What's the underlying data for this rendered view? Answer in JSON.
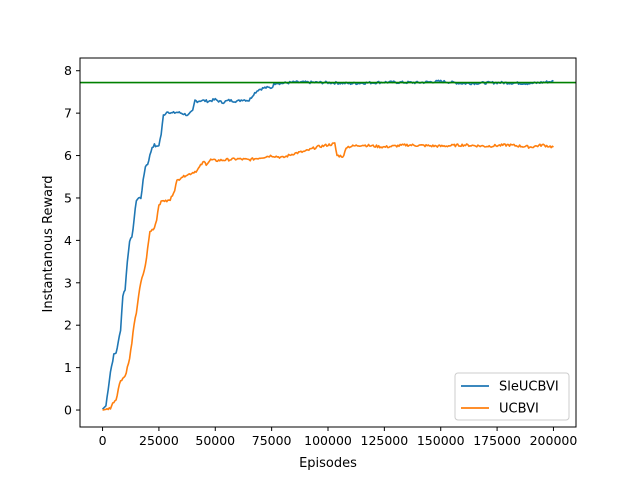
{
  "chart_data": {
    "type": "line",
    "title": "",
    "xlabel": "Episodes",
    "ylabel": "Instantanous Reward",
    "xlim": [
      -10000,
      210000
    ],
    "ylim": [
      -0.4,
      8.3
    ],
    "xticks": [
      0,
      25000,
      50000,
      75000,
      100000,
      125000,
      150000,
      175000,
      200000
    ],
    "yticks": [
      0,
      1,
      2,
      3,
      4,
      5,
      6,
      7,
      8
    ],
    "grid": false,
    "legend_position": "lower right",
    "reference_line": {
      "y": 7.72,
      "color": "#008000"
    },
    "series": [
      {
        "name": "SleUCBVI",
        "color": "#1f77b4",
        "x": [
          0,
          1500,
          2500,
          3500,
          5000,
          6000,
          7000,
          8000,
          9000,
          10000,
          11000,
          12000,
          13000,
          14000,
          15000,
          16000,
          17000,
          18000,
          19000,
          20000,
          21000,
          22000,
          23000,
          24000,
          25000,
          26000,
          27000,
          28000,
          29000,
          30000,
          31000,
          33000,
          35000,
          38000,
          40000,
          41000,
          42000,
          44000,
          47000,
          50000,
          53000,
          56000,
          60000,
          62000,
          65000,
          67000,
          69000,
          72000,
          75000,
          76000,
          77000,
          79000,
          85000,
          100000,
          110000,
          125000,
          140000,
          150000,
          160000,
          175000,
          190000,
          200000
        ],
        "y": [
          0.02,
          0.1,
          0.5,
          0.9,
          1.3,
          1.35,
          1.6,
          1.9,
          2.7,
          2.85,
          3.5,
          4.0,
          4.05,
          4.5,
          4.95,
          5.0,
          5.0,
          5.4,
          5.75,
          5.8,
          6.0,
          6.2,
          6.25,
          6.2,
          6.25,
          6.5,
          6.95,
          7.0,
          7.05,
          7.0,
          7.0,
          7.02,
          7.0,
          6.95,
          7.05,
          7.3,
          7.28,
          7.3,
          7.28,
          7.32,
          7.25,
          7.3,
          7.28,
          7.32,
          7.3,
          7.45,
          7.55,
          7.6,
          7.6,
          7.68,
          7.72,
          7.7,
          7.73,
          7.72,
          7.7,
          7.73,
          7.72,
          7.75,
          7.7,
          7.72,
          7.7,
          7.75
        ]
      },
      {
        "name": "UCBVI",
        "color": "#ff7f0e",
        "x": [
          0,
          2000,
          3500,
          5000,
          6000,
          7000,
          8000,
          9000,
          10000,
          11000,
          12000,
          13000,
          14000,
          15000,
          16000,
          17000,
          18000,
          19000,
          20000,
          21000,
          22000,
          23000,
          24000,
          25000,
          26000,
          27000,
          28000,
          30000,
          32000,
          33000,
          34000,
          35000,
          36000,
          37000,
          38000,
          40000,
          42000,
          44000,
          45000,
          46000,
          48000,
          50000,
          55000,
          60000,
          65000,
          70000,
          75000,
          80000,
          85000,
          90000,
          95000,
          100000,
          103000,
          104000,
          107000,
          108000,
          115000,
          125000,
          135000,
          150000,
          160000,
          170000,
          180000,
          190000,
          195000,
          200000
        ],
        "y": [
          0.0,
          0.02,
          0.05,
          0.2,
          0.25,
          0.5,
          0.7,
          0.75,
          0.8,
          1.0,
          1.2,
          1.6,
          2.0,
          2.3,
          2.7,
          3.0,
          3.2,
          3.4,
          3.8,
          4.2,
          4.25,
          4.3,
          4.5,
          4.85,
          4.9,
          4.95,
          4.92,
          4.95,
          5.2,
          5.4,
          5.45,
          5.5,
          5.5,
          5.55,
          5.55,
          5.6,
          5.65,
          5.8,
          5.85,
          5.8,
          5.9,
          5.88,
          5.9,
          5.92,
          5.9,
          5.95,
          6.0,
          5.95,
          6.05,
          6.1,
          6.2,
          6.25,
          6.28,
          6.0,
          5.98,
          6.2,
          6.25,
          6.2,
          6.25,
          6.22,
          6.25,
          6.22,
          6.25,
          6.2,
          6.25,
          6.2
        ]
      }
    ]
  }
}
